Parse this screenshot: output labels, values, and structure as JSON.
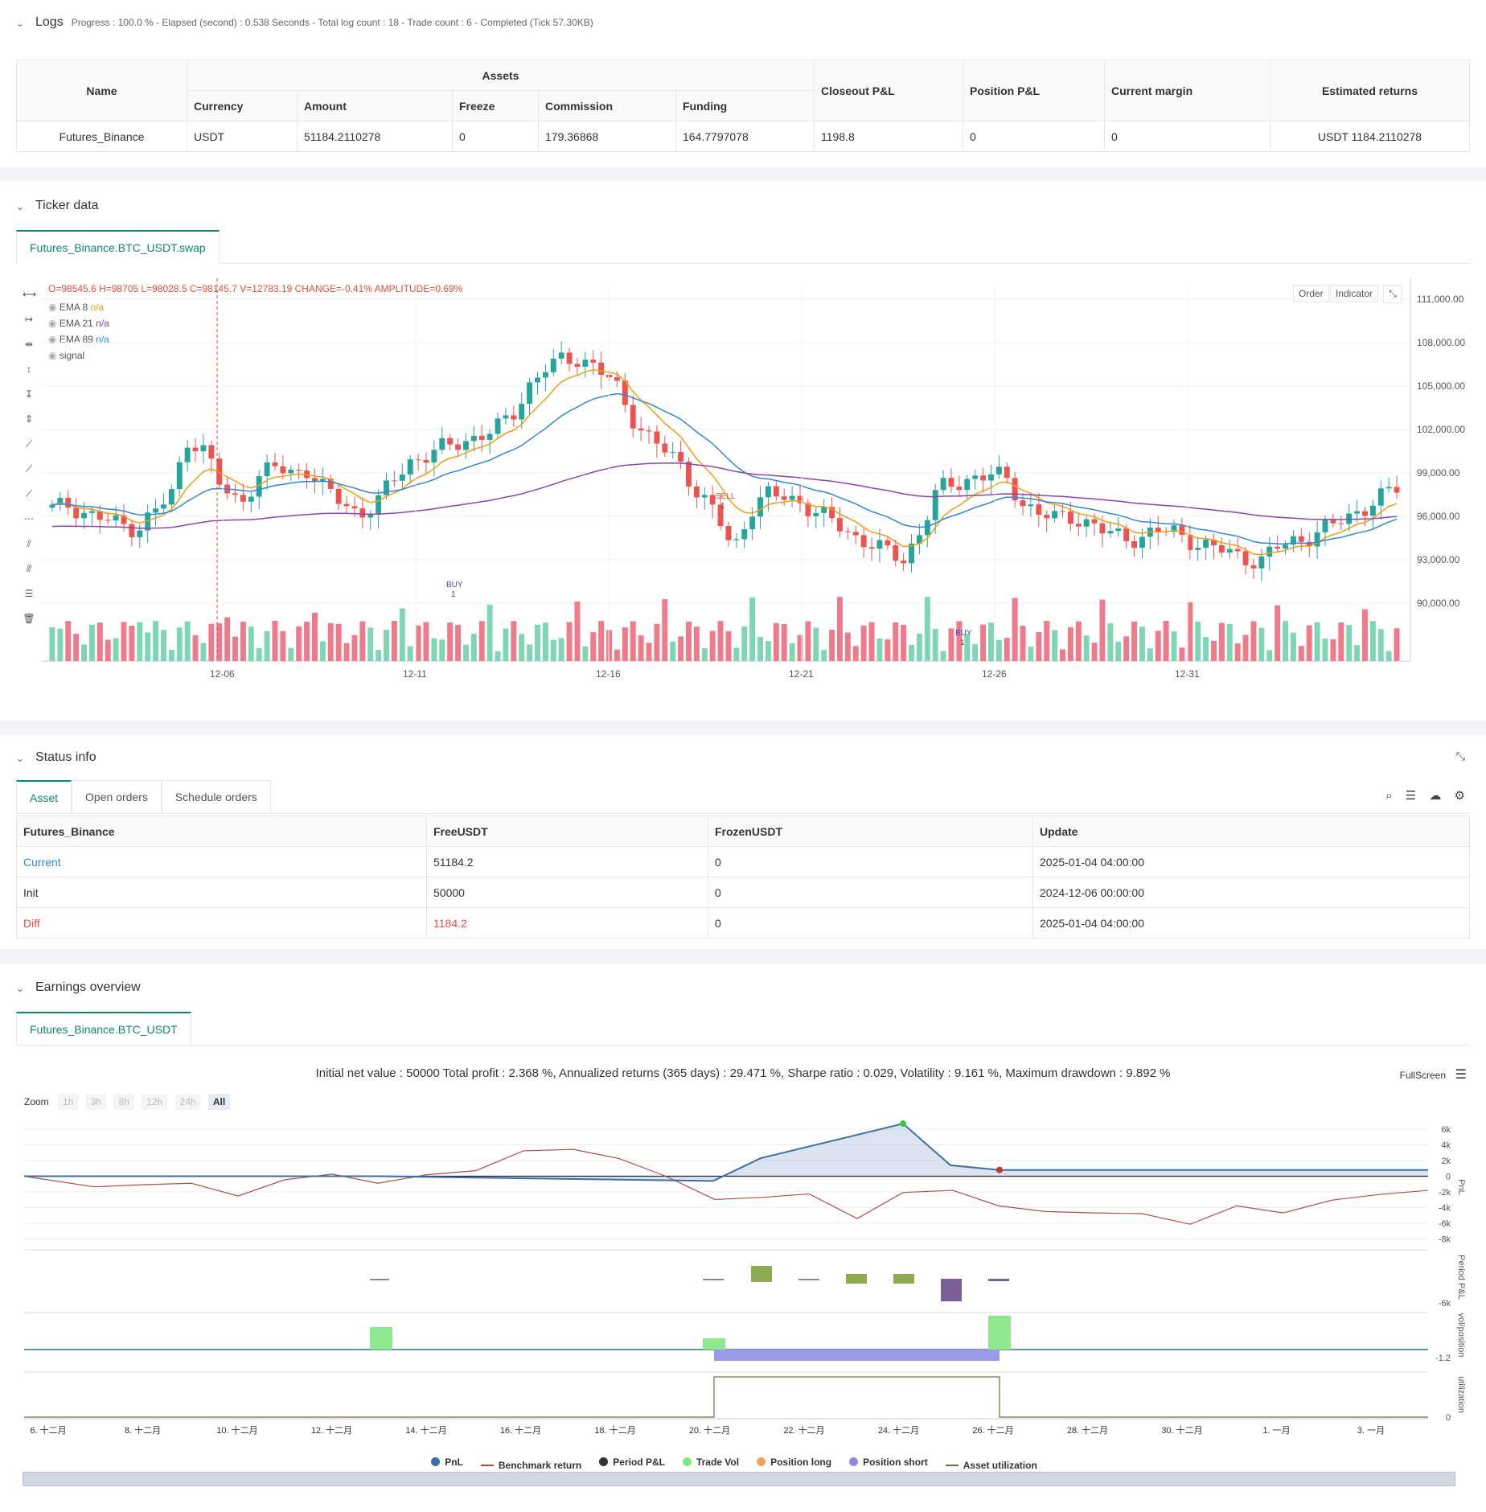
{
  "logs": {
    "title": "Logs",
    "summary": "Progress : 100.0 % - Elapsed (second) : 0.538  Seconds - Total log count : 18 - Trade count : 6 - Completed (Tick 57.30KB)",
    "table": {
      "h_name": "Name",
      "h_assets": "Assets",
      "h_closeout": "Closeout P&L",
      "h_position": "Position P&L",
      "h_margin": "Current margin",
      "h_returns": "Estimated returns",
      "h_currency": "Currency",
      "h_amount": "Amount",
      "h_freeze": "Freeze",
      "h_commission": "Commission",
      "h_funding": "Funding",
      "row": {
        "name": "Futures_Binance",
        "currency": "USDT",
        "amount": "51184.2110278",
        "freeze": "0",
        "commission": "179.36868",
        "funding": "164.7797078",
        "closeout": "1198.8",
        "position": "0",
        "margin": "0",
        "returns": "USDT 1184.2110278"
      }
    }
  },
  "ticker": {
    "title": "Ticker data",
    "tab": "Futures_Binance.BTC_USDT.swap",
    "ohlc": "O=98545.6 H=98705 L=98028.5 C=98145.7 V=12783.19 CHANGE=-0.41% AMPLITUDE=0.69%",
    "legend": [
      {
        "label": "EMA 8",
        "value": "n/a",
        "color": "#f39c12"
      },
      {
        "label": "EMA 21",
        "value": "n/a",
        "color": "#8e44ad"
      },
      {
        "label": "EMA 89",
        "value": "n/a",
        "color": "#2e86de"
      },
      {
        "label": "signal",
        "value": "",
        "color": "#888"
      }
    ],
    "btn_order": "Order",
    "btn_indicator": "Indicator",
    "y_ticks": [
      "111,000.00",
      "108,000.00",
      "105,000.00",
      "102,000.00",
      "99,000.00",
      "96,000.00",
      "93,000.00",
      "90,000.00"
    ],
    "x_ticks": [
      "12-06",
      "12-11",
      "12-16",
      "12-21",
      "12-26",
      "12-31"
    ],
    "signals": [
      {
        "label": "BUY",
        "qty": "1"
      },
      {
        "label": "SELL",
        "qty": "1"
      },
      {
        "label": "BUY",
        "qty": "1"
      }
    ]
  },
  "status": {
    "title": "Status info",
    "tabs": [
      "Asset",
      "Open orders",
      "Schedule orders"
    ],
    "headers": [
      "Futures_Binance",
      "FreeUSDT",
      "FrozenUSDT",
      "Update"
    ],
    "rows": [
      [
        "Current",
        "51184.2",
        "0",
        "2025-01-04 04:00:00"
      ],
      [
        "Init",
        "50000",
        "0",
        "2024-12-06 00:00:00"
      ],
      [
        "Diff",
        "1184.2",
        "0",
        "2025-01-04 04:00:00"
      ]
    ]
  },
  "earnings": {
    "title": "Earnings overview",
    "tab": "Futures_Binance.BTC_USDT",
    "summary": "Initial net value : 50000  Total profit : 2.368 %, Annualized returns (365 days) : 29.471 %, Sharpe ratio : 0.029, Volatility : 9.161 %, Maximum drawdown : 9.892 %",
    "fullscreen": "FullScreen",
    "zoom_label": "Zoom",
    "zoom": [
      "1h",
      "3h",
      "8h",
      "12h",
      "24h",
      "All"
    ],
    "pnl_ticks": [
      "6k",
      "4k",
      "2k",
      "0",
      "-2k",
      "-4k",
      "-6k",
      "-8k"
    ],
    "period_tick": "-6k",
    "vol_tick": "-1.2",
    "util_tick": "0",
    "axis_titles": [
      "PnL",
      "Period P&L",
      "vol/position",
      "utilization"
    ],
    "x_ticks": [
      "6. 十二月",
      "8. 十二月",
      "10. 十二月",
      "12. 十二月",
      "14. 十二月",
      "16. 十二月",
      "18. 十二月",
      "20. 十二月",
      "22. 十二月",
      "24. 十二月",
      "26. 十二月",
      "28. 十二月",
      "30. 十二月",
      "1. 一月",
      "3. 一月"
    ],
    "legend": [
      {
        "label": "PnL",
        "color": "#3d6fa6",
        "kind": "dot"
      },
      {
        "label": "Benchmark return",
        "color": "#b34d4d",
        "kind": "line"
      },
      {
        "label": "Period P&L",
        "color": "#333333",
        "kind": "dot"
      },
      {
        "label": "Trade Vol",
        "color": "#7ee87e",
        "kind": "dot"
      },
      {
        "label": "Position long",
        "color": "#f4a55a",
        "kind": "dot"
      },
      {
        "label": "Position short",
        "color": "#8c8ce6",
        "kind": "dot"
      },
      {
        "label": "Asset utilization",
        "color": "#7a6a3a",
        "kind": "line"
      }
    ]
  }
}
